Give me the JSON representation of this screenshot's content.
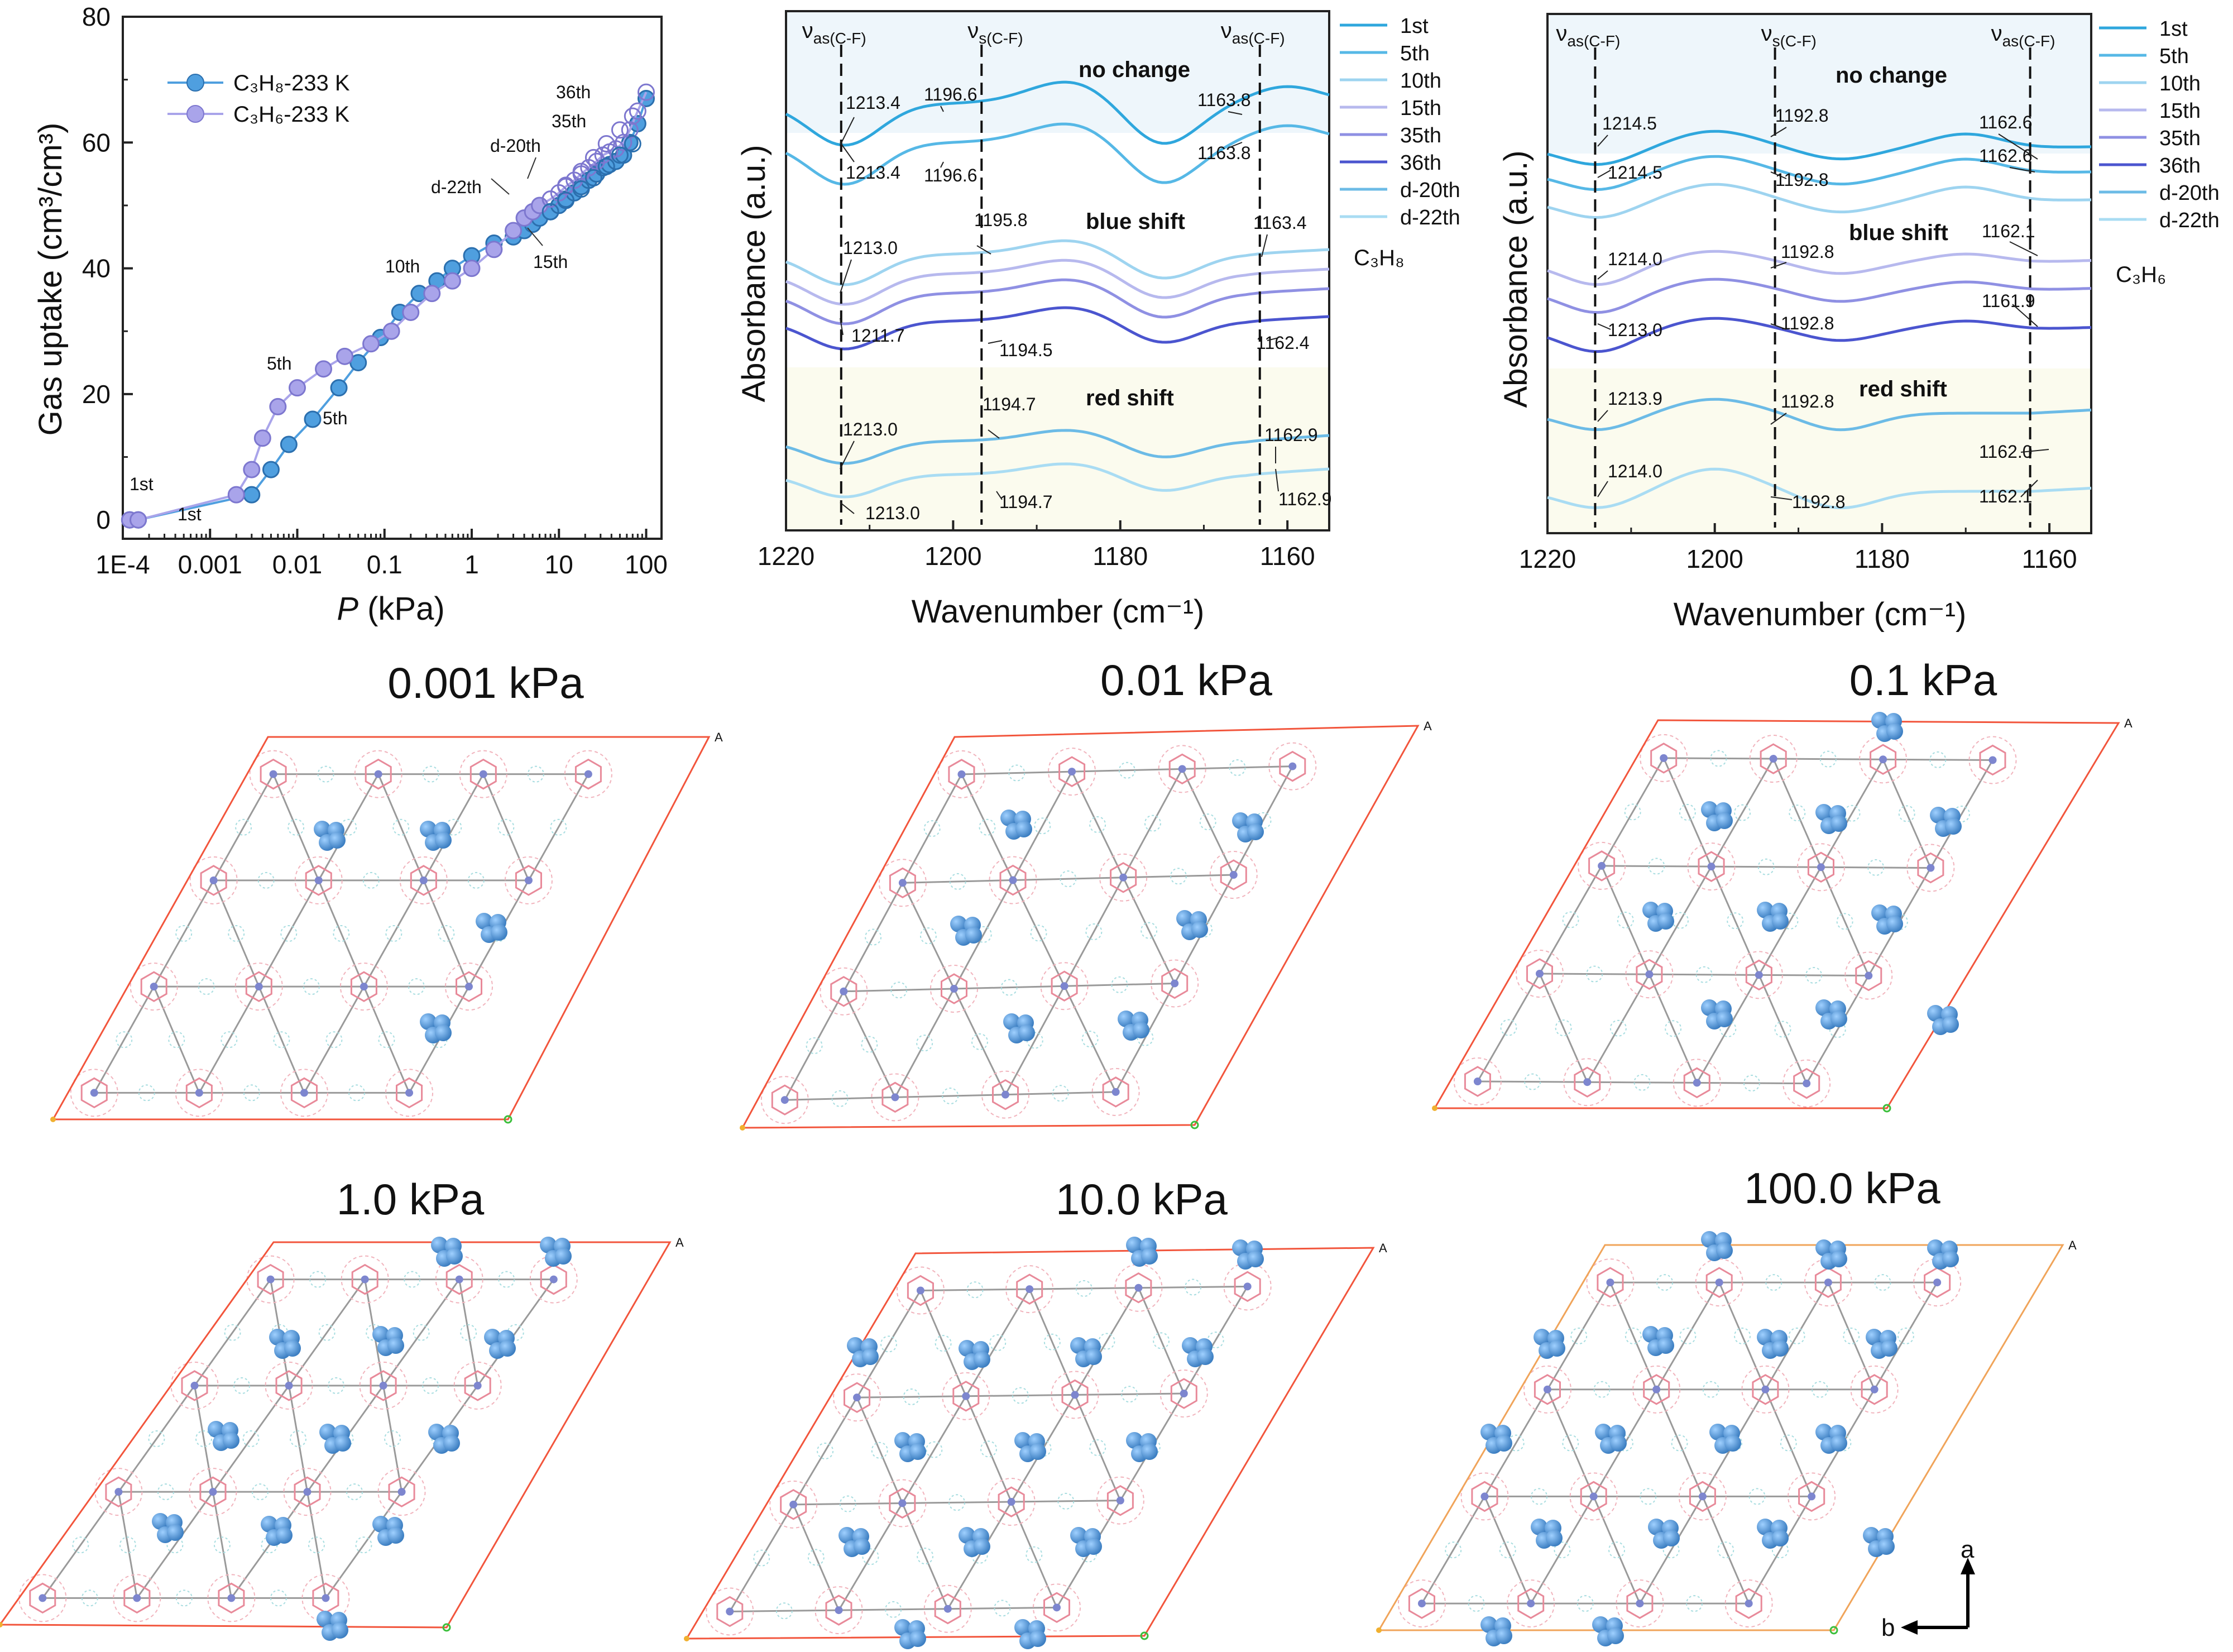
{
  "colors": {
    "c3h8": "#4f9fdf",
    "c3h6": "#a9a4ea",
    "ftir": [
      "#2fa7dd",
      "#56b8e6",
      "#9ed4f0",
      "#b7b9ee",
      "#8f90e3",
      "#4b55cf",
      "#6cbbe6",
      "#a9dcf3"
    ],
    "cell_red": "#f2553c",
    "cell_orange": "#f0a45a",
    "molecule": "#4e8fcf",
    "framework": "#8a8a8a",
    "node": "#e88a9a",
    "band_top": "#eef6fb",
    "band_bottom": "#fbfbee"
  },
  "chart_data": [
    {
      "type": "scatter",
      "xscale": "log",
      "xlim": [
        0.0001,
        150
      ],
      "ylim": [
        -3,
        80
      ],
      "xlabel_italic": "P",
      "xlabel_unit": " (kPa)",
      "ylabel": "Gas uptake (cm³/cm³)",
      "xticks": [
        "1E-4",
        "0.001",
        "0.01",
        "0.1",
        "1",
        "10",
        "100"
      ],
      "yticks": [
        "0",
        "20",
        "40",
        "60",
        "80"
      ],
      "legend": [
        "C₃H₈-233 K",
        "C₃H₆-233 K"
      ],
      "series": [
        {
          "name": "C₃H₈-233 K",
          "x": [
            0.00012,
            0.00015,
            0.003,
            0.005,
            0.008,
            0.015,
            0.03,
            0.05,
            0.09,
            0.15,
            0.25,
            0.4,
            0.6,
            1.0,
            1.8,
            3,
            4,
            5,
            6,
            8,
            10,
            12,
            15,
            18,
            22,
            27,
            32,
            38,
            45,
            55,
            65,
            80,
            100
          ],
          "y": [
            0,
            0,
            4,
            8,
            12,
            16,
            21,
            25,
            29,
            33,
            36,
            38,
            40,
            42,
            44,
            45,
            46,
            47,
            48,
            49,
            50,
            51,
            52,
            53,
            54,
            55,
            56,
            56.5,
            57,
            58,
            60,
            63,
            67
          ]
        },
        {
          "name": "C₃H₆-233 K",
          "x": [
            0.00012,
            0.00015,
            0.002,
            0.003,
            0.004,
            0.006,
            0.01,
            0.02,
            0.035,
            0.07,
            0.12,
            0.2,
            0.35,
            0.6,
            1.0,
            1.8,
            3,
            4,
            5,
            6,
            8,
            10,
            12,
            15,
            18,
            22,
            27,
            32,
            38,
            45,
            55,
            65,
            80,
            100
          ],
          "y": [
            0,
            0,
            4,
            8,
            13,
            18,
            21,
            24,
            26,
            28,
            30,
            33,
            36,
            38,
            40,
            43,
            46,
            48,
            49,
            50,
            51,
            52,
            53,
            54,
            55,
            56,
            57,
            58,
            58.5,
            59,
            60,
            62,
            65,
            68
          ]
        }
      ],
      "annotations": [
        "1st",
        "1st",
        "5th",
        "5th",
        "10th",
        "15th",
        "d-22th",
        "d-20th",
        "35th",
        "36th"
      ]
    },
    {
      "type": "line",
      "xlim": [
        1220,
        1155
      ],
      "xlabel": "Wavenumber (cm⁻¹)",
      "ylabel": "Absorbance (a.u.)",
      "xticks": [
        "1220",
        "1200",
        "1180",
        "1160"
      ],
      "gas": "C₃H₈",
      "region_labels": [
        "no change",
        "blue shift",
        "red shift"
      ],
      "vline_labels": [
        "νas(C-F)",
        "νs(C-F)",
        "νas(C-F)"
      ],
      "vlines_x": [
        1213.4,
        1196.6,
        1163.3
      ],
      "legend": [
        "1st",
        "5th",
        "10th",
        "15th",
        "35th",
        "36th",
        "d-20th",
        "d-22th"
      ],
      "peak_labels": [
        "1213.4",
        "1196.6",
        "1163.8",
        "1213.4",
        "1196.6",
        "1163.8",
        "1213.0",
        "1195.8",
        "1163.4",
        "1211.7",
        "1194.5",
        "1162.4",
        "1213.0",
        "1194.7",
        "1162.9",
        "1213.0",
        "1194.7",
        "1162.9"
      ]
    },
    {
      "type": "line",
      "xlim": [
        1220,
        1155
      ],
      "xlabel": "Wavenumber (cm⁻¹)",
      "ylabel": "Absorbance (a.u.)",
      "xticks": [
        "1220",
        "1200",
        "1180",
        "1160"
      ],
      "gas": "C₃H₆",
      "region_labels": [
        "no change",
        "blue shift",
        "red shift"
      ],
      "vline_labels": [
        "νas(C-F)",
        "νs(C-F)",
        "νas(C-F)"
      ],
      "vlines_x": [
        1214.3,
        1192.8,
        1162.3
      ],
      "legend": [
        "1st",
        "5th",
        "10th",
        "15th",
        "35th",
        "36th",
        "d-20th",
        "d-22th"
      ],
      "peak_labels": [
        "1214.5",
        "1192.8",
        "1162.6",
        "1214.5",
        "1192.8",
        "1162.6",
        "1214.0",
        "1192.8",
        "1162.1",
        "1213.0",
        "1192.8",
        "1161.9",
        "1213.9",
        "1192.8",
        "1162.0",
        "1214.0",
        "1192.8",
        "1162.1"
      ]
    }
  ],
  "crystal_panels": [
    {
      "title": "0.001 kPa"
    },
    {
      "title": "0.01 kPa"
    },
    {
      "title": "0.1 kPa"
    },
    {
      "title": "1.0 kPa"
    },
    {
      "title": "10.0 kPa"
    },
    {
      "title": "100.0 kPa"
    }
  ],
  "cell_corner_label": "A",
  "axes_indicator": {
    "a": "a",
    "b": "b"
  }
}
